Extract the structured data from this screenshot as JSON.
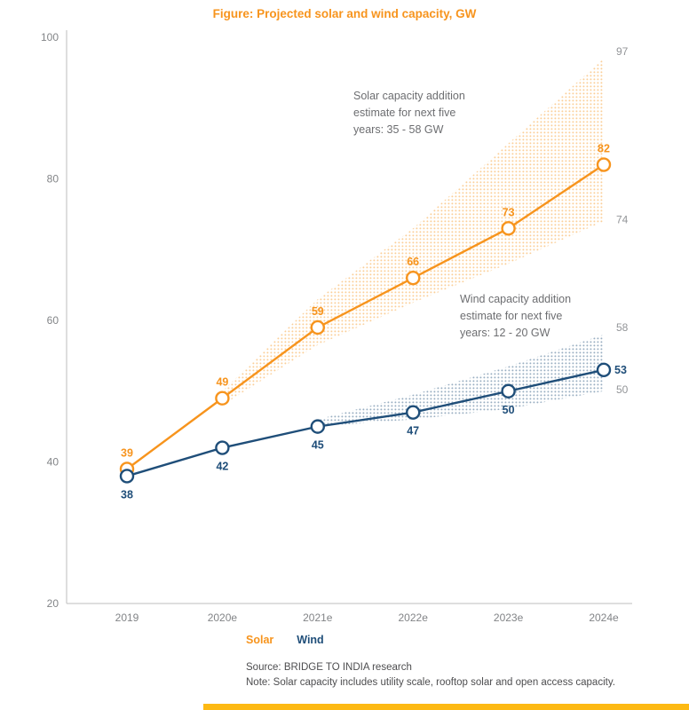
{
  "page": {
    "title": "Figure: Projected solar and wind capacity, GW",
    "source": "Source: BRIDGE TO INDIA research",
    "note": "Note: Solar capacity includes utility scale, rooftop solar and open access capacity."
  },
  "legend": {
    "solar": "Solar",
    "wind": "Wind"
  },
  "annotations": {
    "solar": "Solar capacity addition\nestimate for next five\nyears: 35 - 58 GW",
    "wind": "Wind capacity addition\nestimate for next five\nyears: 12 - 20 GW"
  },
  "colors": {
    "solar": "#F7941D",
    "wind": "#1F4E79",
    "axis": "#c9c9c9",
    "tick_text": "#828487",
    "band_label": "#939598",
    "annotation_text": "#6d6e71",
    "footnote_text": "#4d4d4f",
    "accent_bar": "#FDB913"
  },
  "chart_data": {
    "type": "line",
    "title": "Figure: Projected solar and wind capacity, GW",
    "categories": [
      "2019",
      "2020e",
      "2021e",
      "2022e",
      "2023e",
      "2024e"
    ],
    "y_ticks": [
      100,
      80,
      60,
      40,
      20
    ],
    "ylim": [
      20,
      100
    ],
    "grid": false,
    "legend_position": "bottom",
    "series": [
      {
        "name": "Solar",
        "color": "#F7941D",
        "values": [
          39,
          49,
          59,
          66,
          73,
          82
        ],
        "label_position": "above",
        "band": {
          "start_index": 1,
          "upper": [
            50,
            63,
            73,
            85,
            97
          ],
          "lower": [
            48,
            56.5,
            62.5,
            68,
            74
          ]
        }
      },
      {
        "name": "Wind",
        "color": "#1F4E79",
        "values": [
          38,
          42,
          45,
          47,
          50,
          53
        ],
        "label_position": "below",
        "last_label_position": "right",
        "band": {
          "start_index": 2,
          "upper": [
            46,
            49.5,
            53.5,
            58
          ],
          "lower": [
            45,
            46,
            47.5,
            50
          ]
        }
      }
    ]
  }
}
